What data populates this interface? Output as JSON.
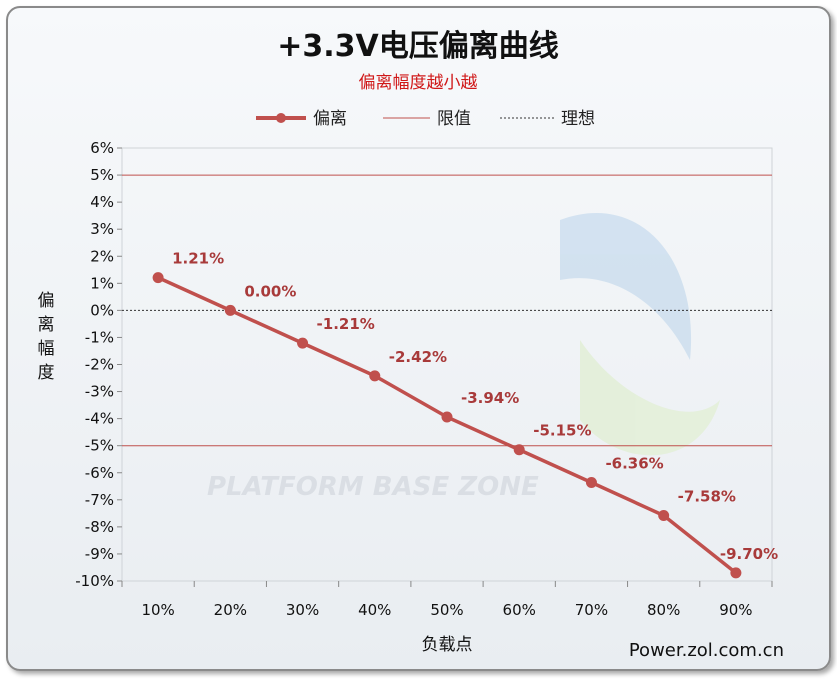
{
  "chart_data": {
    "type": "line",
    "title": "+3.3V电压偏离曲线",
    "subtitle": "偏离幅度越小越",
    "xlabel": "负载点",
    "ylabel": "偏离幅度",
    "categories": [
      "10%",
      "20%",
      "30%",
      "40%",
      "50%",
      "60%",
      "70%",
      "80%",
      "90%"
    ],
    "series": [
      {
        "name": "偏离",
        "values": [
          1.21,
          0.0,
          -1.21,
          -2.42,
          -3.94,
          -5.15,
          -6.36,
          -7.58,
          -9.7
        ],
        "data_labels": [
          "1.21%",
          "0.00%",
          "-1.21%",
          "-2.42%",
          "-3.94%",
          "-5.15%",
          "-6.36%",
          "-7.58%",
          "-9.70%"
        ],
        "color": "#c0504d"
      }
    ],
    "reference_lines": [
      {
        "name": "限值",
        "values": [
          5,
          -5
        ],
        "color": "#c0504d"
      },
      {
        "name": "理想",
        "values": [
          0
        ],
        "color": "#333333"
      }
    ],
    "ylim": [
      -10,
      6
    ],
    "yticks": [
      -10,
      -9,
      -8,
      -7,
      -6,
      -5,
      -4,
      -3,
      -2,
      -1,
      0,
      1,
      2,
      3,
      4,
      5,
      6
    ],
    "ytick_labels": [
      "-10%",
      "-9%",
      "-8%",
      "-7%",
      "-6%",
      "-5%",
      "-4%",
      "-3%",
      "-2%",
      "-1%",
      "0%",
      "1%",
      "2%",
      "3%",
      "4%",
      "5%",
      "6%"
    ],
    "grid": false,
    "legend": "top"
  },
  "watermark": {
    "text": "PLATFORM BASE ZONE"
  },
  "source": "Power.zol.com.cn"
}
